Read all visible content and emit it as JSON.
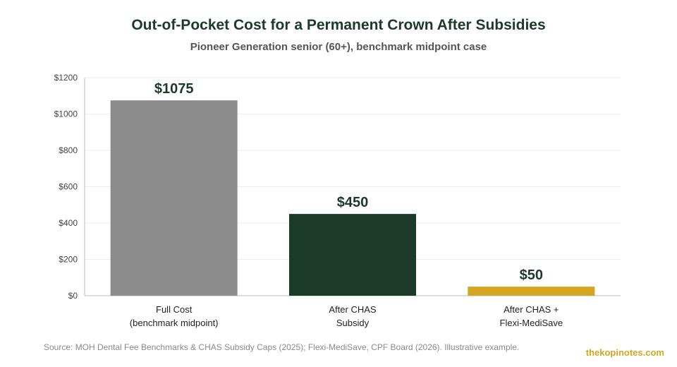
{
  "header": {
    "title": "Out-of-Pocket Cost for a Permanent Crown After Subsidies",
    "subtitle": "Pioneer Generation senior (60+), benchmark midpoint case"
  },
  "footer": {
    "source": "Source: MOH Dental Fee Benchmarks & CHAS Subsidy Caps (2025); Flexi-MediSave, CPF Board (2026). Illustrative example.",
    "brand": "thekopinotes.com"
  },
  "chart_data": {
    "type": "bar",
    "title": "Out-of-Pocket Cost for a Permanent Crown After Subsidies",
    "subtitle": "Pioneer Generation senior (60+), benchmark midpoint case",
    "categories": [
      [
        "Full Cost",
        "(benchmark midpoint)"
      ],
      [
        "After CHAS",
        "Subsidy"
      ],
      [
        "After CHAS +",
        "Flexi-MediSave"
      ]
    ],
    "values": [
      1075,
      450,
      50
    ],
    "data_labels": [
      "$1075",
      "$450",
      "$50"
    ],
    "bar_colors": [
      "#8c8c8c",
      "#1b3a2a",
      "#d4a520"
    ],
    "ylim": [
      0,
      1200
    ],
    "yticks": [
      0,
      200,
      400,
      600,
      800,
      1000,
      1200
    ],
    "ytick_labels": [
      "$0",
      "$200",
      "$400",
      "$600",
      "$800",
      "$1000",
      "$1200"
    ],
    "xlabel": "",
    "ylabel": "",
    "grid": true,
    "legend": "none"
  }
}
